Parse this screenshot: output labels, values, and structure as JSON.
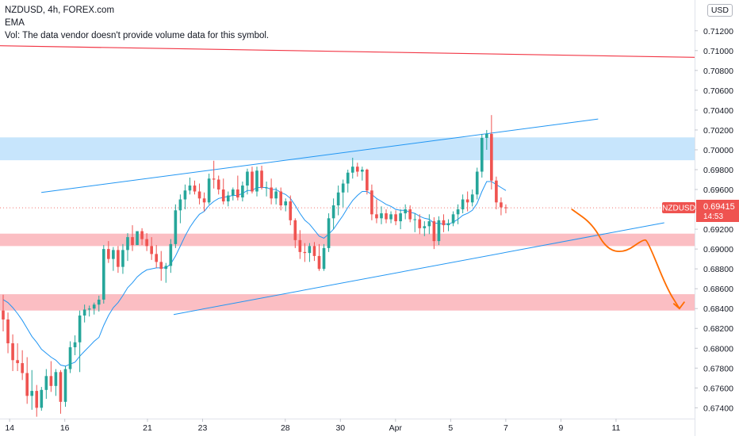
{
  "header": {
    "symbol_line": "NZDUSD, 4h, FOREX.com",
    "indicator": "EMA",
    "volume_note": "Vol: The data vendor doesn't provide volume data for this symbol.",
    "currency": "USD"
  },
  "price_tag": {
    "symbol": "NZDUSD",
    "price": "0.69415",
    "countdown": "14:53",
    "color": "#ef5350"
  },
  "colors": {
    "up": "#26a69a",
    "down": "#ef5350",
    "channel": "#2196f3",
    "resistance_line": "#f23645",
    "blue_zone": "rgba(33,150,243,0.25)",
    "red_zone": "rgba(242,54,69,0.32)",
    "projection": "#ff6d00",
    "ema": "#2196f3"
  },
  "chart_data": {
    "type": "candlestick",
    "symbol": "NZDUSD",
    "timeframe": "4h",
    "x_ticks": [
      {
        "x": 0.7,
        "label": "14"
      },
      {
        "x": 4.7,
        "label": "16"
      },
      {
        "x": 10.7,
        "label": "21"
      },
      {
        "x": 14.7,
        "label": "23"
      },
      {
        "x": 20.7,
        "label": "28"
      },
      {
        "x": 24.7,
        "label": "30"
      },
      {
        "x": 28.7,
        "label": "Apr"
      },
      {
        "x": 32.7,
        "label": "5"
      },
      {
        "x": 36.7,
        "label": "7"
      },
      {
        "x": 40.7,
        "label": "9"
      },
      {
        "x": 44.7,
        "label": "11"
      }
    ],
    "y_ticks": [
      "0.71200",
      "0.71000",
      "0.70800",
      "0.70600",
      "0.70400",
      "0.70200",
      "0.70000",
      "0.69800",
      "0.69600",
      "0.69400",
      "0.69200",
      "0.69000",
      "0.68800",
      "0.68600",
      "0.68400",
      "0.68200",
      "0.68000",
      "0.67800",
      "0.67600",
      "0.67400"
    ],
    "ylim": [
      0.67315,
      0.7143
    ],
    "xlim": [
      0,
      50.4
    ],
    "last_price": 0.69415,
    "candles": [
      {
        "o": 0.6838,
        "h": 0.6854,
        "l": 0.6817,
        "c": 0.6829
      },
      {
        "o": 0.6829,
        "h": 0.6836,
        "l": 0.6795,
        "c": 0.6805
      },
      {
        "o": 0.6805,
        "h": 0.6814,
        "l": 0.6777,
        "c": 0.6788
      },
      {
        "o": 0.6788,
        "h": 0.6805,
        "l": 0.6777,
        "c": 0.6785
      },
      {
        "o": 0.6785,
        "h": 0.6798,
        "l": 0.6768,
        "c": 0.6775
      },
      {
        "o": 0.6775,
        "h": 0.6791,
        "l": 0.6744,
        "c": 0.6752
      },
      {
        "o": 0.6752,
        "h": 0.6778,
        "l": 0.6738,
        "c": 0.6757
      },
      {
        "o": 0.6757,
        "h": 0.6763,
        "l": 0.6731,
        "c": 0.674
      },
      {
        "o": 0.674,
        "h": 0.6761,
        "l": 0.6737,
        "c": 0.6758
      },
      {
        "o": 0.6758,
        "h": 0.6779,
        "l": 0.6749,
        "c": 0.6772
      },
      {
        "o": 0.6772,
        "h": 0.6787,
        "l": 0.6756,
        "c": 0.6762
      },
      {
        "o": 0.6762,
        "h": 0.6779,
        "l": 0.6752,
        "c": 0.6776
      },
      {
        "o": 0.6776,
        "h": 0.6778,
        "l": 0.6734,
        "c": 0.6746
      },
      {
        "o": 0.6746,
        "h": 0.6782,
        "l": 0.6741,
        "c": 0.6779
      },
      {
        "o": 0.6779,
        "h": 0.6807,
        "l": 0.6775,
        "c": 0.6801
      },
      {
        "o": 0.6801,
        "h": 0.6813,
        "l": 0.6793,
        "c": 0.6806
      },
      {
        "o": 0.6806,
        "h": 0.6838,
        "l": 0.6776,
        "c": 0.6833
      },
      {
        "o": 0.6833,
        "h": 0.6844,
        "l": 0.6826,
        "c": 0.6839
      },
      {
        "o": 0.6839,
        "h": 0.6843,
        "l": 0.6832,
        "c": 0.684
      },
      {
        "o": 0.684,
        "h": 0.6846,
        "l": 0.6834,
        "c": 0.6844
      },
      {
        "o": 0.6844,
        "h": 0.6853,
        "l": 0.6837,
        "c": 0.6849
      },
      {
        "o": 0.6849,
        "h": 0.6904,
        "l": 0.6845,
        "c": 0.69
      },
      {
        "o": 0.69,
        "h": 0.6908,
        "l": 0.6886,
        "c": 0.689
      },
      {
        "o": 0.689,
        "h": 0.6902,
        "l": 0.6878,
        "c": 0.6899
      },
      {
        "o": 0.6899,
        "h": 0.6903,
        "l": 0.6876,
        "c": 0.6882
      },
      {
        "o": 0.6882,
        "h": 0.6905,
        "l": 0.6875,
        "c": 0.6899
      },
      {
        "o": 0.6899,
        "h": 0.6916,
        "l": 0.6888,
        "c": 0.6912
      },
      {
        "o": 0.6912,
        "h": 0.6924,
        "l": 0.6898,
        "c": 0.6904
      },
      {
        "o": 0.6904,
        "h": 0.6918,
        "l": 0.6904,
        "c": 0.6918
      },
      {
        "o": 0.6918,
        "h": 0.6921,
        "l": 0.6904,
        "c": 0.691
      },
      {
        "o": 0.691,
        "h": 0.6916,
        "l": 0.6898,
        "c": 0.6903
      },
      {
        "o": 0.6903,
        "h": 0.6912,
        "l": 0.6889,
        "c": 0.6895
      },
      {
        "o": 0.6895,
        "h": 0.6904,
        "l": 0.6881,
        "c": 0.6887
      },
      {
        "o": 0.6887,
        "h": 0.6898,
        "l": 0.6868,
        "c": 0.688
      },
      {
        "o": 0.688,
        "h": 0.6886,
        "l": 0.6866,
        "c": 0.6883
      },
      {
        "o": 0.6883,
        "h": 0.691,
        "l": 0.6876,
        "c": 0.6905
      },
      {
        "o": 0.6905,
        "h": 0.6945,
        "l": 0.6901,
        "c": 0.6939
      },
      {
        "o": 0.6939,
        "h": 0.6955,
        "l": 0.6926,
        "c": 0.695
      },
      {
        "o": 0.695,
        "h": 0.6965,
        "l": 0.694,
        "c": 0.6959
      },
      {
        "o": 0.6959,
        "h": 0.6972,
        "l": 0.6955,
        "c": 0.6964
      },
      {
        "o": 0.6964,
        "h": 0.6969,
        "l": 0.6955,
        "c": 0.6958
      },
      {
        "o": 0.6958,
        "h": 0.6966,
        "l": 0.6945,
        "c": 0.6951
      },
      {
        "o": 0.6951,
        "h": 0.6957,
        "l": 0.6938,
        "c": 0.6947
      },
      {
        "o": 0.6947,
        "h": 0.6976,
        "l": 0.6945,
        "c": 0.6971
      },
      {
        "o": 0.6971,
        "h": 0.6989,
        "l": 0.6961,
        "c": 0.697
      },
      {
        "o": 0.697,
        "h": 0.6974,
        "l": 0.6955,
        "c": 0.696
      },
      {
        "o": 0.696,
        "h": 0.6971,
        "l": 0.6945,
        "c": 0.6948
      },
      {
        "o": 0.6948,
        "h": 0.6958,
        "l": 0.6943,
        "c": 0.6954
      },
      {
        "o": 0.6954,
        "h": 0.6962,
        "l": 0.6949,
        "c": 0.696
      },
      {
        "o": 0.696,
        "h": 0.6974,
        "l": 0.6949,
        "c": 0.6952
      },
      {
        "o": 0.6952,
        "h": 0.6968,
        "l": 0.6948,
        "c": 0.6964
      },
      {
        "o": 0.6964,
        "h": 0.6981,
        "l": 0.6955,
        "c": 0.6978
      },
      {
        "o": 0.6978,
        "h": 0.6983,
        "l": 0.6956,
        "c": 0.6958
      },
      {
        "o": 0.6958,
        "h": 0.6983,
        "l": 0.6953,
        "c": 0.6979
      },
      {
        "o": 0.6979,
        "h": 0.6984,
        "l": 0.696,
        "c": 0.6962
      },
      {
        "o": 0.6962,
        "h": 0.6968,
        "l": 0.6953,
        "c": 0.6962
      },
      {
        "o": 0.6962,
        "h": 0.6971,
        "l": 0.6945,
        "c": 0.6951
      },
      {
        "o": 0.6951,
        "h": 0.6962,
        "l": 0.6945,
        "c": 0.6958
      },
      {
        "o": 0.6958,
        "h": 0.6962,
        "l": 0.6939,
        "c": 0.6944
      },
      {
        "o": 0.6944,
        "h": 0.6951,
        "l": 0.6938,
        "c": 0.6948
      },
      {
        "o": 0.6948,
        "h": 0.6954,
        "l": 0.6924,
        "c": 0.6929
      },
      {
        "o": 0.6929,
        "h": 0.6931,
        "l": 0.6901,
        "c": 0.6909
      },
      {
        "o": 0.6909,
        "h": 0.6919,
        "l": 0.689,
        "c": 0.6897
      },
      {
        "o": 0.6897,
        "h": 0.6906,
        "l": 0.6887,
        "c": 0.6896
      },
      {
        "o": 0.6896,
        "h": 0.6906,
        "l": 0.6887,
        "c": 0.6903
      },
      {
        "o": 0.6903,
        "h": 0.6907,
        "l": 0.6888,
        "c": 0.6893
      },
      {
        "o": 0.6893,
        "h": 0.6905,
        "l": 0.6878,
        "c": 0.688
      },
      {
        "o": 0.688,
        "h": 0.6905,
        "l": 0.6878,
        "c": 0.6901
      },
      {
        "o": 0.6901,
        "h": 0.6936,
        "l": 0.6897,
        "c": 0.6931
      },
      {
        "o": 0.6931,
        "h": 0.6951,
        "l": 0.692,
        "c": 0.6944
      },
      {
        "o": 0.6944,
        "h": 0.6964,
        "l": 0.6934,
        "c": 0.6957
      },
      {
        "o": 0.6957,
        "h": 0.697,
        "l": 0.6942,
        "c": 0.6966
      },
      {
        "o": 0.6966,
        "h": 0.698,
        "l": 0.6957,
        "c": 0.6977
      },
      {
        "o": 0.6977,
        "h": 0.6992,
        "l": 0.6971,
        "c": 0.6983
      },
      {
        "o": 0.6983,
        "h": 0.6987,
        "l": 0.6973,
        "c": 0.6978
      },
      {
        "o": 0.6978,
        "h": 0.6983,
        "l": 0.6969,
        "c": 0.698
      },
      {
        "o": 0.698,
        "h": 0.6981,
        "l": 0.6955,
        "c": 0.6959
      },
      {
        "o": 0.6959,
        "h": 0.6965,
        "l": 0.6929,
        "c": 0.6935
      },
      {
        "o": 0.6935,
        "h": 0.695,
        "l": 0.6926,
        "c": 0.6931
      },
      {
        "o": 0.6931,
        "h": 0.6943,
        "l": 0.6925,
        "c": 0.6936
      },
      {
        "o": 0.6936,
        "h": 0.694,
        "l": 0.6926,
        "c": 0.693
      },
      {
        "o": 0.693,
        "h": 0.6938,
        "l": 0.6926,
        "c": 0.6935
      },
      {
        "o": 0.6935,
        "h": 0.6939,
        "l": 0.6924,
        "c": 0.6928
      },
      {
        "o": 0.6928,
        "h": 0.694,
        "l": 0.692,
        "c": 0.6936
      },
      {
        "o": 0.6936,
        "h": 0.6945,
        "l": 0.693,
        "c": 0.694
      },
      {
        "o": 0.694,
        "h": 0.6944,
        "l": 0.6927,
        "c": 0.693
      },
      {
        "o": 0.693,
        "h": 0.6936,
        "l": 0.6917,
        "c": 0.693
      },
      {
        "o": 0.693,
        "h": 0.6935,
        "l": 0.6915,
        "c": 0.6921
      },
      {
        "o": 0.6921,
        "h": 0.6928,
        "l": 0.6913,
        "c": 0.6923
      },
      {
        "o": 0.6923,
        "h": 0.6935,
        "l": 0.6915,
        "c": 0.6928
      },
      {
        "o": 0.6928,
        "h": 0.6932,
        "l": 0.69,
        "c": 0.6908
      },
      {
        "o": 0.6908,
        "h": 0.6933,
        "l": 0.6904,
        "c": 0.6929
      },
      {
        "o": 0.6929,
        "h": 0.6935,
        "l": 0.6917,
        "c": 0.6924
      },
      {
        "o": 0.6924,
        "h": 0.693,
        "l": 0.6918,
        "c": 0.6926
      },
      {
        "o": 0.6926,
        "h": 0.6938,
        "l": 0.6923,
        "c": 0.6935
      },
      {
        "o": 0.6935,
        "h": 0.6945,
        "l": 0.6925,
        "c": 0.694
      },
      {
        "o": 0.694,
        "h": 0.6955,
        "l": 0.6936,
        "c": 0.695
      },
      {
        "o": 0.695,
        "h": 0.6958,
        "l": 0.6938,
        "c": 0.6947
      },
      {
        "o": 0.6947,
        "h": 0.696,
        "l": 0.6943,
        "c": 0.6955
      },
      {
        "o": 0.6955,
        "h": 0.6982,
        "l": 0.695,
        "c": 0.6978
      },
      {
        "o": 0.6978,
        "h": 0.7016,
        "l": 0.6972,
        "c": 0.7012
      },
      {
        "o": 0.7012,
        "h": 0.702,
        "l": 0.7,
        "c": 0.7016
      },
      {
        "o": 0.7016,
        "h": 0.7035,
        "l": 0.696,
        "c": 0.6969
      },
      {
        "o": 0.6969,
        "h": 0.6973,
        "l": 0.694,
        "c": 0.6947
      },
      {
        "o": 0.6947,
        "h": 0.6952,
        "l": 0.6934,
        "c": 0.6942
      },
      {
        "o": 0.6942,
        "h": 0.6945,
        "l": 0.6936,
        "c": 0.69415
      }
    ],
    "ema": [
      0.6849,
      0.6846,
      0.6841,
      0.6835,
      0.6828,
      0.682,
      0.6812,
      0.6806,
      0.6799,
      0.6795,
      0.6791,
      0.6788,
      0.6783,
      0.6782,
      0.6784,
      0.6786,
      0.6792,
      0.6797,
      0.6802,
      0.6807,
      0.6811,
      0.6823,
      0.6833,
      0.6841,
      0.6846,
      0.6853,
      0.6861,
      0.6866,
      0.6872,
      0.6876,
      0.6879,
      0.688,
      0.6881,
      0.6881,
      0.6881,
      0.6885,
      0.6893,
      0.6903,
      0.6913,
      0.6922,
      0.6929,
      0.6935,
      0.6938,
      0.6944,
      0.6948,
      0.6951,
      0.6952,
      0.6953,
      0.6954,
      0.6954,
      0.6956,
      0.6959,
      0.6959,
      0.6962,
      0.6962,
      0.6962,
      0.696,
      0.696,
      0.6957,
      0.6955,
      0.6951,
      0.6944,
      0.6936,
      0.6929,
      0.6925,
      0.6919,
      0.6913,
      0.6911,
      0.6915,
      0.692,
      0.6927,
      0.6934,
      0.6942,
      0.6949,
      0.6954,
      0.6958,
      0.6958,
      0.6955,
      0.6951,
      0.6948,
      0.6945,
      0.6943,
      0.694,
      0.6939,
      0.6939,
      0.6937,
      0.6936,
      0.6933,
      0.6931,
      0.693,
      0.6926,
      0.6926,
      0.6925,
      0.6925,
      0.6927,
      0.693,
      0.6934,
      0.6936,
      0.6939,
      0.6946,
      0.6958,
      0.6968,
      0.6968,
      0.6965,
      0.6962,
      0.6959
    ],
    "drawings": {
      "blue_zone": {
        "y1": 0.69895,
        "y2": 0.70125
      },
      "red_zone_upper": {
        "y1": 0.6903,
        "y2": 0.69155
      },
      "red_zone_lower": {
        "y1": 0.6838,
        "y2": 0.68545
      },
      "resistance_line": {
        "x1": -0.5,
        "y1": 0.7105,
        "x2": 50.4,
        "y2": 0.70932
      },
      "channel_upper": {
        "x1": 3.0,
        "y1": 0.6957,
        "x2": 43.4,
        "y2": 0.7031
      },
      "channel_lower": {
        "x1": 12.6,
        "y1": 0.6834,
        "x2": 48.2,
        "y2": 0.69265
      },
      "projection": [
        [
          41.5,
          0.694
        ],
        [
          43.0,
          0.6925
        ],
        [
          44.0,
          0.69
        ],
        [
          45.3,
          0.6896
        ],
        [
          46.7,
          0.691
        ],
        [
          47.0,
          0.6908
        ],
        [
          48.4,
          0.686
        ],
        [
          49.3,
          0.684
        ]
      ]
    }
  }
}
